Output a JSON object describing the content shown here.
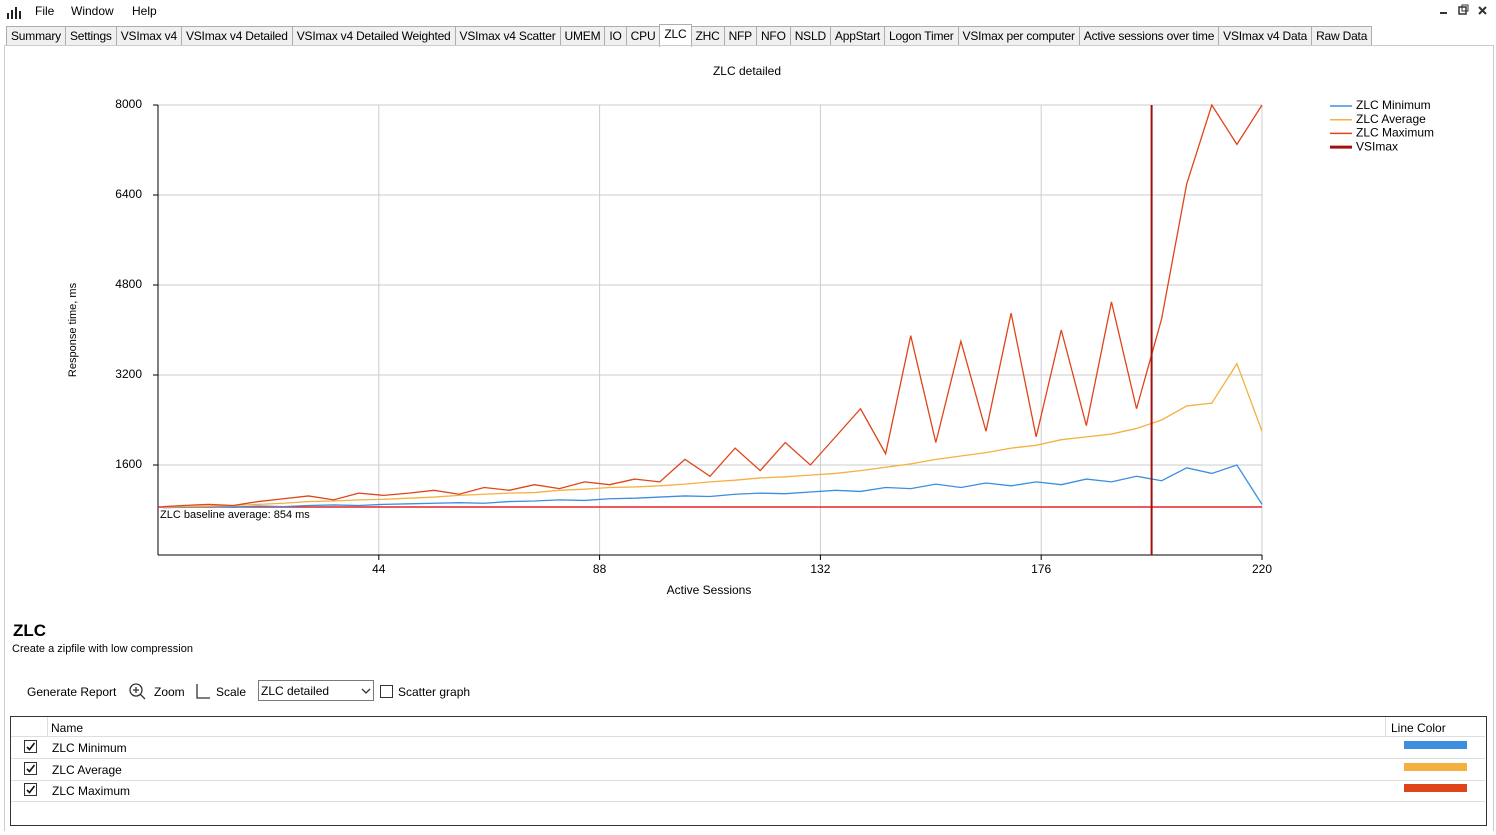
{
  "menu": [
    "File",
    "Window",
    "Help"
  ],
  "tabs": [
    "Summary",
    "Settings",
    "VSImax v4",
    "VSImax v4 Detailed",
    "VSImax v4 Detailed Weighted",
    "VSImax v4 Scatter",
    "UMEM",
    "IO",
    "CPU",
    "ZLC",
    "ZHC",
    "NFP",
    "NFO",
    "NSLD",
    "AppStart",
    "Logon Timer",
    "VSImax per computer",
    "Active sessions over time",
    "VSImax v4 Data",
    "Raw Data"
  ],
  "selected_tab": "ZLC",
  "chart_data": {
    "type": "line",
    "title": "ZLC detailed",
    "x_label": "Active Sessions",
    "y_label": "Response time, ms",
    "x": [
      1,
      5,
      10,
      15,
      20,
      25,
      30,
      35,
      40,
      45,
      50,
      55,
      60,
      65,
      70,
      75,
      80,
      85,
      90,
      95,
      100,
      105,
      110,
      115,
      120,
      125,
      130,
      135,
      140,
      145,
      150,
      155,
      160,
      165,
      170,
      175,
      180,
      185,
      190,
      195,
      200,
      205,
      210,
      215,
      220
    ],
    "series": [
      {
        "name": "ZLC Minimum",
        "color": "#3b8ee0",
        "values": [
          840,
          850,
          860,
          850,
          870,
          860,
          880,
          890,
          880,
          900,
          910,
          920,
          930,
          920,
          950,
          960,
          980,
          970,
          1000,
          1010,
          1030,
          1050,
          1040,
          1080,
          1100,
          1090,
          1120,
          1150,
          1130,
          1200,
          1180,
          1260,
          1200,
          1280,
          1230,
          1300,
          1250,
          1350,
          1300,
          1400,
          1320,
          1550,
          1450,
          1600,
          900
        ]
      },
      {
        "name": "ZLC Average",
        "color": "#f5b041",
        "values": [
          850,
          860,
          870,
          880,
          900,
          920,
          950,
          960,
          980,
          990,
          1010,
          1030,
          1060,
          1080,
          1100,
          1110,
          1150,
          1170,
          1200,
          1210,
          1230,
          1260,
          1300,
          1330,
          1370,
          1390,
          1420,
          1450,
          1500,
          1560,
          1620,
          1700,
          1760,
          1820,
          1900,
          1950,
          2050,
          2100,
          2150,
          2250,
          2400,
          2650,
          2700,
          3400,
          2200
        ]
      },
      {
        "name": "ZLC Maximum",
        "color": "#e0441a",
        "values": [
          860,
          880,
          900,
          880,
          950,
          1000,
          1050,
          980,
          1100,
          1060,
          1100,
          1150,
          1080,
          1200,
          1150,
          1250,
          1180,
          1300,
          1250,
          1350,
          1300,
          1700,
          1400,
          1900,
          1500,
          2000,
          1600,
          2100,
          2600,
          1800,
          3900,
          2000,
          3800,
          2200,
          4300,
          2100,
          4000,
          2300,
          4500,
          2600,
          4200,
          6600,
          8000,
          7300,
          8000
        ]
      }
    ],
    "vline": {
      "name": "VSImax",
      "x": 198,
      "color": "#a01010"
    },
    "baseline": {
      "value": 854,
      "label": "ZLC baseline average: 854 ms",
      "color": "#e8252a"
    },
    "xlim": [
      0,
      220
    ],
    "ylim": [
      0,
      8000
    ],
    "xticks": [
      44,
      88,
      132,
      176,
      220
    ],
    "yticks": [
      1600,
      3200,
      4800,
      6400,
      8000
    ],
    "grid": true,
    "legend": "top-right"
  },
  "panel": {
    "title": "ZLC",
    "description": "Create a zipfile with low compression",
    "toolbar": [
      "Generate Report",
      "Zoom",
      "Scale"
    ],
    "scatter_label": "Scatter graph",
    "table": {
      "columns": [
        "Name",
        "Line Color"
      ],
      "checked": [
        true,
        true,
        true
      ]
    }
  }
}
